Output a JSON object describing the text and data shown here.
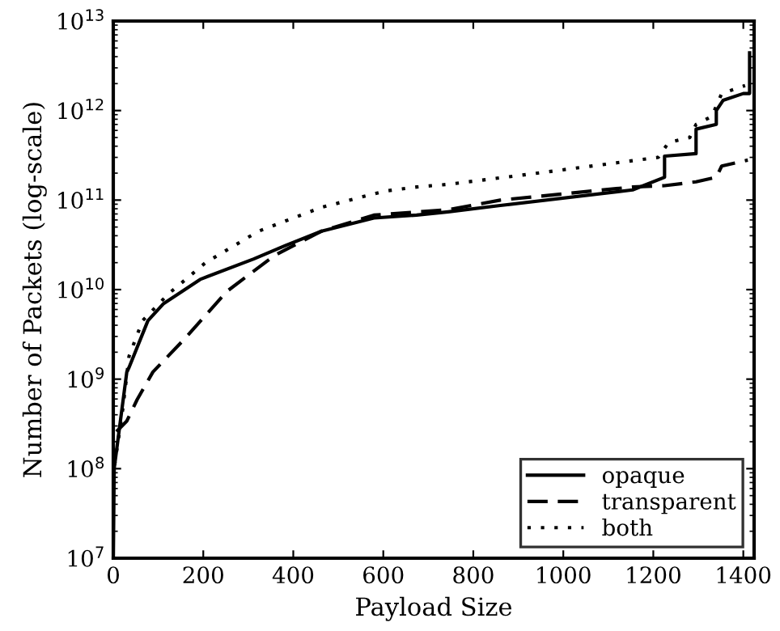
{
  "chart_data": {
    "type": "line",
    "xlabel": "Payload Size",
    "ylabel": "Number of Packets (log-scale)",
    "log": true,
    "legend": "bottom right",
    "grid": false,
    "xlim": [
      0,
      1424
    ],
    "xticks": [
      0,
      200,
      400,
      600,
      800,
      1000,
      1200,
      1400
    ],
    "ylim": [
      10000000.0,
      10000000000000.0
    ],
    "yticks": [
      {
        "value": 10000000.0,
        "label": "10$^{7}$"
      },
      {
        "value": 100000000.0,
        "label": "10$^{8}$"
      },
      {
        "value": 1000000000.0,
        "label": "10$^{9}$"
      },
      {
        "value": 10000000000.0,
        "label": "10$^{10}$"
      },
      {
        "value": 100000000000.0,
        "label": "10$^{11}$"
      },
      {
        "value": 1000000000000.0,
        "label": "10$^{12}$"
      },
      {
        "value": 10000000000000.0,
        "label": "10$^{13}$"
      }
    ],
    "series": [
      {
        "name": "opaque",
        "color": "#000000",
        "line_style": "solid",
        "x": [
          0,
          2,
          30,
          35,
          77,
          112,
          193,
          312,
          382,
          463,
          579,
          674,
          744,
          860,
          1154,
          1225,
          1225,
          1295,
          1295,
          1340,
          1340,
          1355,
          1400,
          1414,
          1414
        ],
        "values": [
          10000000.0,
          100000000.0,
          1200000000.0,
          1350000000.0,
          4500000000.0,
          7000000000.0,
          13000000000.0,
          22000000000.0,
          31000000000.0,
          45000000000.0,
          63000000000.0,
          68000000000.0,
          74000000000.0,
          87000000000.0,
          130000000000.0,
          180000000000.0,
          310000000000.0,
          330000000000.0,
          620000000000.0,
          700000000000.0,
          1000000000000.0,
          1300000000000.0,
          1550000000000.0,
          1550000000000.0,
          4400000000000.0
        ]
      },
      {
        "name": "transparent",
        "color": "#000000",
        "line_style": "dashed",
        "x": [
          7,
          30,
          53,
          88,
          158,
          253,
          358,
          463,
          579,
          744,
          860,
          1154,
          1225,
          1295,
          1340,
          1352,
          1410
        ],
        "values": [
          260000000.0,
          340000000.0,
          590000000.0,
          1200000000.0,
          2800000000.0,
          9600000000.0,
          24000000000.0,
          45000000000.0,
          68000000000.0,
          78000000000.0,
          100000000000.0,
          140000000000.0,
          145000000000.0,
          160000000000.0,
          180000000000.0,
          240000000000.0,
          280000000000.0
        ]
      },
      {
        "name": "both",
        "color": "#000000",
        "line_style": "dotted",
        "x": [
          3,
          21,
          35,
          65,
          123,
          205,
          323,
          463,
          603,
          674,
          744,
          908,
          1211,
          1234,
          1281,
          1295,
          1330,
          1352,
          1404
        ],
        "values": [
          110000000.0,
          460000000.0,
          1800000000.0,
          4500000000.0,
          9000000000.0,
          20000000000.0,
          45000000000.0,
          83000000000.0,
          126000000000.0,
          140000000000.0,
          150000000000.0,
          190000000000.0,
          300000000000.0,
          440000000000.0,
          500000000000.0,
          700000000000.0,
          860000000000.0,
          1550000000000.0,
          1900000000000.0
        ]
      }
    ]
  }
}
